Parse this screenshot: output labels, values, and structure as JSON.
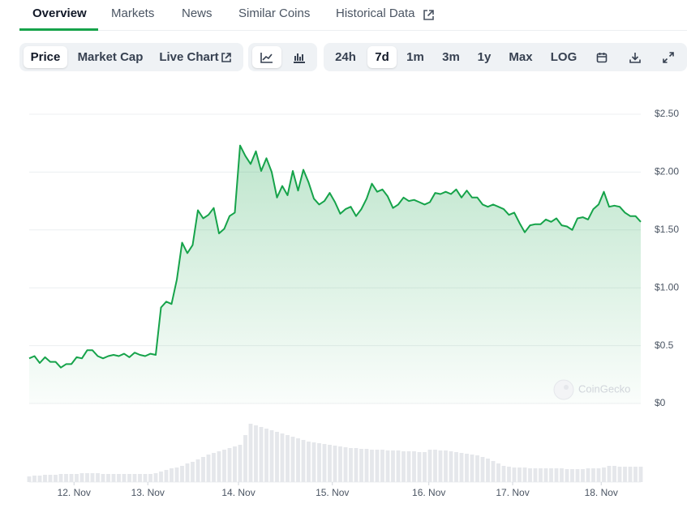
{
  "tabs": [
    "Overview",
    "Markets",
    "News",
    "Similar Coins",
    "Historical Data"
  ],
  "chart_modes": [
    "Price",
    "Market Cap",
    "Live Chart"
  ],
  "ranges": [
    "24h",
    "7d",
    "1m",
    "3m",
    "1y",
    "Max",
    "LOG"
  ],
  "watermark": "CoinGecko",
  "chart_data": {
    "type": "line",
    "color": "#16a34a",
    "values": [
      0.39,
      0.41,
      0.35,
      0.4,
      0.36,
      0.36,
      0.31,
      0.34,
      0.34,
      0.4,
      0.39,
      0.46,
      0.46,
      0.41,
      0.39,
      0.41,
      0.42,
      0.41,
      0.43,
      0.4,
      0.44,
      0.42,
      0.41,
      0.43,
      0.42,
      0.83,
      0.88,
      0.86,
      1.07,
      1.39,
      1.3,
      1.37,
      1.67,
      1.6,
      1.63,
      1.69,
      1.47,
      1.51,
      1.62,
      1.65,
      2.23,
      2.14,
      2.07,
      2.18,
      2.01,
      2.12,
      2.0,
      1.78,
      1.88,
      1.8,
      2.01,
      1.84,
      2.02,
      1.91,
      1.77,
      1.72,
      1.75,
      1.82,
      1.74,
      1.64,
      1.68,
      1.7,
      1.62,
      1.68,
      1.77,
      1.9,
      1.83,
      1.85,
      1.79,
      1.69,
      1.72,
      1.78,
      1.75,
      1.76,
      1.74,
      1.72,
      1.74,
      1.82,
      1.81,
      1.83,
      1.81,
      1.85,
      1.78,
      1.84,
      1.78,
      1.78,
      1.72,
      1.7,
      1.72,
      1.7,
      1.68,
      1.63,
      1.65,
      1.56,
      1.48,
      1.54,
      1.55,
      1.55,
      1.59,
      1.57,
      1.6,
      1.54,
      1.53,
      1.5,
      1.6,
      1.61,
      1.59,
      1.68,
      1.72,
      1.83,
      1.7,
      1.71,
      1.7,
      1.65,
      1.62,
      1.62,
      1.57
    ],
    "volume": [
      7,
      8,
      8,
      9,
      9,
      9,
      10,
      10,
      10,
      10,
      11,
      11,
      11,
      11,
      10,
      10,
      10,
      10,
      10,
      10,
      10,
      10,
      10,
      10,
      11,
      13,
      15,
      17,
      18,
      20,
      23,
      25,
      28,
      31,
      34,
      36,
      38,
      40,
      42,
      44,
      46,
      58,
      72,
      70,
      68,
      66,
      64,
      62,
      60,
      58,
      56,
      54,
      52,
      50,
      49,
      48,
      47,
      46,
      45,
      44,
      43,
      42,
      42,
      41,
      41,
      40,
      40,
      40,
      39,
      39,
      39,
      38,
      38,
      38,
      37,
      37,
      40,
      40,
      39,
      39,
      38,
      37,
      36,
      35,
      34,
      33,
      31,
      29,
      26,
      23,
      20,
      19,
      18,
      18,
      18,
      17,
      17,
      17,
      17,
      17,
      17,
      17,
      16,
      16,
      16,
      16,
      17,
      17,
      17,
      18,
      20,
      20,
      19,
      19,
      19,
      19,
      19
    ],
    "volume_color": "#e5e7eb",
    "xlim": [
      0,
      116
    ],
    "xticks": [
      {
        "value": 8.5,
        "label": "12. Nov"
      },
      {
        "value": 22.5,
        "label": "13. Nov"
      },
      {
        "value": 39.7,
        "label": "14. Nov"
      },
      {
        "value": 57.5,
        "label": "15. Nov"
      },
      {
        "value": 75.8,
        "label": "16. Nov"
      },
      {
        "value": 91.7,
        "label": "17. Nov"
      },
      {
        "value": 108.5,
        "label": "18. Nov"
      }
    ],
    "ylim": [
      0,
      2.5
    ],
    "yticks": [
      {
        "value": 0,
        "label": "$0"
      },
      {
        "value": 0.5,
        "label": "$0.5"
      },
      {
        "value": 1,
        "label": "$1.00"
      },
      {
        "value": 1.5,
        "label": "$1.50"
      },
      {
        "value": 2,
        "label": "$2.00"
      },
      {
        "value": 2.5,
        "label": "$2.50"
      }
    ],
    "y2lim": [
      0,
      80
    ],
    "grid": true
  }
}
